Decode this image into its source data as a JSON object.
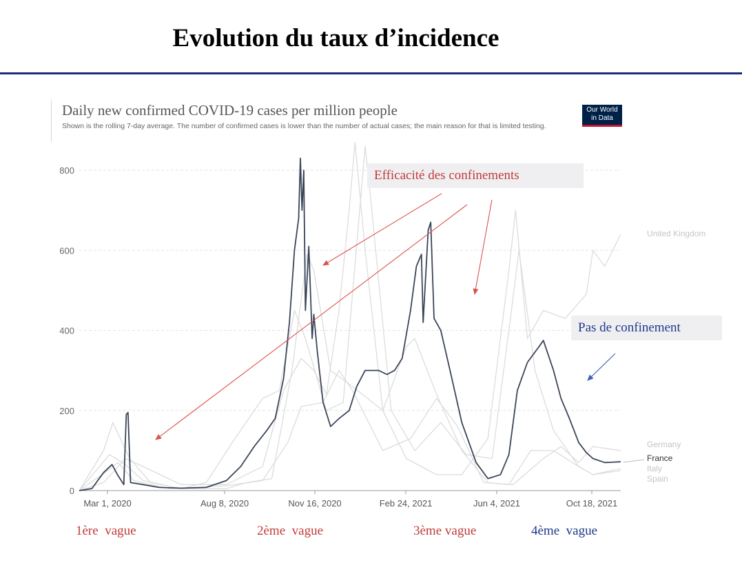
{
  "slide": {
    "title": "Evolution du taux d’incidence"
  },
  "logo": {
    "line1": "Our World",
    "line2": "in Data"
  },
  "annotations": {
    "red": "Efficacité des confinements",
    "blue": "Pas de confinement"
  },
  "waves": [
    "1ère  vague",
    "2ème  vague",
    "3ème vague",
    "4ème  vague"
  ],
  "colors": {
    "france": "#3a4458",
    "others": "#dcdcdc",
    "red": "#d9534f",
    "blue": "#3f5fb0"
  },
  "chart_data": {
    "type": "line",
    "title": "Daily new confirmed COVID-19 cases per million people",
    "subtitle": "Shown is the rolling 7-day average. The number of confirmed cases is lower than the number of actual cases; the main reason for that is limited testing.",
    "x_ticks": [
      "Mar 1, 2020",
      "Aug 8, 2020",
      "Nov 16, 2020",
      "Feb 24, 2021",
      "Jun 4, 2021",
      "Oct 18, 2021"
    ],
    "x_range": [
      "2020-02-15",
      "2021-11-20"
    ],
    "ylim": [
      0,
      850
    ],
    "y_ticks": [
      0,
      200,
      400,
      600,
      800
    ],
    "grid": true,
    "legend": "right, labels at line ends",
    "series": [
      {
        "name": "France",
        "highlight": true,
        "points": [
          [
            "2020-02-15",
            0
          ],
          [
            "2020-03-01",
            5
          ],
          [
            "2020-03-15",
            45
          ],
          [
            "2020-03-25",
            65
          ],
          [
            "2020-04-01",
            38
          ],
          [
            "2020-04-08",
            15
          ],
          [
            "2020-04-11",
            190
          ],
          [
            "2020-04-13",
            195
          ],
          [
            "2020-04-16",
            20
          ],
          [
            "2020-05-01",
            15
          ],
          [
            "2020-05-20",
            8
          ],
          [
            "2020-06-15",
            6
          ],
          [
            "2020-07-15",
            8
          ],
          [
            "2020-08-08",
            25
          ],
          [
            "2020-08-25",
            60
          ],
          [
            "2020-09-10",
            110
          ],
          [
            "2020-09-25",
            150
          ],
          [
            "2020-10-05",
            180
          ],
          [
            "2020-10-15",
            280
          ],
          [
            "2020-10-22",
            420
          ],
          [
            "2020-10-28",
            600
          ],
          [
            "2020-11-02",
            680
          ],
          [
            "2020-11-04",
            830
          ],
          [
            "2020-11-06",
            700
          ],
          [
            "2020-11-08",
            800
          ],
          [
            "2020-11-10",
            450
          ],
          [
            "2020-11-14",
            610
          ],
          [
            "2020-11-18",
            380
          ],
          [
            "2020-11-20",
            440
          ],
          [
            "2020-11-24",
            350
          ],
          [
            "2020-12-01",
            220
          ],
          [
            "2020-12-10",
            160
          ],
          [
            "2020-12-20",
            180
          ],
          [
            "2021-01-01",
            200
          ],
          [
            "2021-01-10",
            260
          ],
          [
            "2021-01-20",
            300
          ],
          [
            "2021-02-05",
            300
          ],
          [
            "2021-02-15",
            290
          ],
          [
            "2021-02-24",
            300
          ],
          [
            "2021-03-05",
            330
          ],
          [
            "2021-03-15",
            450
          ],
          [
            "2021-03-22",
            560
          ],
          [
            "2021-03-28",
            590
          ],
          [
            "2021-03-30",
            420
          ],
          [
            "2021-04-05",
            650
          ],
          [
            "2021-04-08",
            670
          ],
          [
            "2021-04-12",
            430
          ],
          [
            "2021-04-20",
            400
          ],
          [
            "2021-05-01",
            300
          ],
          [
            "2021-05-15",
            170
          ],
          [
            "2021-06-01",
            70
          ],
          [
            "2021-06-15",
            30
          ],
          [
            "2021-06-30",
            40
          ],
          [
            "2021-07-10",
            90
          ],
          [
            "2021-07-20",
            250
          ],
          [
            "2021-08-01",
            320
          ],
          [
            "2021-08-15",
            360
          ],
          [
            "2021-08-20",
            375
          ],
          [
            "2021-09-01",
            300
          ],
          [
            "2021-09-10",
            230
          ],
          [
            "2021-09-20",
            180
          ],
          [
            "2021-10-01",
            120
          ],
          [
            "2021-10-10",
            95
          ],
          [
            "2021-10-18",
            80
          ],
          [
            "2021-11-01",
            70
          ],
          [
            "2021-11-20",
            72
          ]
        ]
      },
      {
        "name": "United Kingdom",
        "highlight": false,
        "points": [
          [
            "2020-02-15",
            0
          ],
          [
            "2020-03-15",
            20
          ],
          [
            "2020-04-10",
            80
          ],
          [
            "2020-05-01",
            60
          ],
          [
            "2020-06-15",
            15
          ],
          [
            "2020-08-08",
            15
          ],
          [
            "2020-09-20",
            60
          ],
          [
            "2020-10-15",
            250
          ],
          [
            "2020-11-05",
            330
          ],
          [
            "2020-11-20",
            300
          ],
          [
            "2020-12-05",
            240
          ],
          [
            "2020-12-20",
            450
          ],
          [
            "2021-01-01",
            700
          ],
          [
            "2021-01-08",
            870
          ],
          [
            "2021-01-20",
            600
          ],
          [
            "2021-02-10",
            200
          ],
          [
            "2021-03-10",
            80
          ],
          [
            "2021-04-15",
            40
          ],
          [
            "2021-05-15",
            40
          ],
          [
            "2021-06-15",
            130
          ],
          [
            "2021-07-10",
            550
          ],
          [
            "2021-07-18",
            700
          ],
          [
            "2021-08-01",
            380
          ],
          [
            "2021-08-20",
            450
          ],
          [
            "2021-09-15",
            430
          ],
          [
            "2021-10-10",
            490
          ],
          [
            "2021-10-18",
            600
          ],
          [
            "2021-11-01",
            560
          ],
          [
            "2021-11-20",
            640
          ]
        ]
      },
      {
        "name": "Germany",
        "highlight": false,
        "points": [
          [
            "2020-02-15",
            0
          ],
          [
            "2020-03-20",
            50
          ],
          [
            "2020-04-01",
            70
          ],
          [
            "2020-04-20",
            25
          ],
          [
            "2020-06-01",
            5
          ],
          [
            "2020-08-08",
            12
          ],
          [
            "2020-09-20",
            25
          ],
          [
            "2020-10-20",
            120
          ],
          [
            "2020-11-05",
            210
          ],
          [
            "2020-12-01",
            220
          ],
          [
            "2020-12-20",
            300
          ],
          [
            "2021-01-05",
            250
          ],
          [
            "2021-02-10",
            100
          ],
          [
            "2021-03-15",
            130
          ],
          [
            "2021-04-15",
            230
          ],
          [
            "2021-05-10",
            160
          ],
          [
            "2021-06-10",
            20
          ],
          [
            "2021-07-15",
            15
          ],
          [
            "2021-08-20",
            80
          ],
          [
            "2021-09-10",
            110
          ],
          [
            "2021-10-01",
            70
          ],
          [
            "2021-10-18",
            110
          ],
          [
            "2021-11-20",
            100
          ]
        ]
      },
      {
        "name": "Italy",
        "highlight": false,
        "points": [
          [
            "2020-02-15",
            0
          ],
          [
            "2020-03-10",
            60
          ],
          [
            "2020-03-22",
            90
          ],
          [
            "2020-04-10",
            65
          ],
          [
            "2020-05-01",
            25
          ],
          [
            "2020-06-15",
            5
          ],
          [
            "2020-08-08",
            5
          ],
          [
            "2020-09-01",
            20
          ],
          [
            "2020-10-01",
            30
          ],
          [
            "2020-10-25",
            300
          ],
          [
            "2020-11-12",
            590
          ],
          [
            "2020-11-20",
            550
          ],
          [
            "2020-12-10",
            300
          ],
          [
            "2021-01-05",
            260
          ],
          [
            "2021-02-10",
            200
          ],
          [
            "2021-03-10",
            360
          ],
          [
            "2021-03-20",
            380
          ],
          [
            "2021-04-15",
            240
          ],
          [
            "2021-05-15",
            100
          ],
          [
            "2021-06-15",
            20
          ],
          [
            "2021-07-10",
            15
          ],
          [
            "2021-08-05",
            100
          ],
          [
            "2021-09-01",
            100
          ],
          [
            "2021-10-01",
            60
          ],
          [
            "2021-10-18",
            40
          ],
          [
            "2021-11-20",
            55
          ]
        ]
      },
      {
        "name": "Spain",
        "highlight": false,
        "points": [
          [
            "2020-02-15",
            0
          ],
          [
            "2020-03-15",
            100
          ],
          [
            "2020-03-26",
            170
          ],
          [
            "2020-04-15",
            80
          ],
          [
            "2020-05-10",
            20
          ],
          [
            "2020-06-15",
            5
          ],
          [
            "2020-07-15",
            20
          ],
          [
            "2020-08-15",
            120
          ],
          [
            "2020-09-20",
            230
          ],
          [
            "2020-10-10",
            250
          ],
          [
            "2020-10-28",
            450
          ],
          [
            "2020-11-10",
            380
          ],
          [
            "2020-12-05",
            200
          ],
          [
            "2020-12-25",
            220
          ],
          [
            "2021-01-20",
            860
          ],
          [
            "2021-01-28",
            700
          ],
          [
            "2021-02-20",
            200
          ],
          [
            "2021-03-20",
            100
          ],
          [
            "2021-04-20",
            170
          ],
          [
            "2021-05-20",
            90
          ],
          [
            "2021-06-20",
            80
          ],
          [
            "2021-07-10",
            400
          ],
          [
            "2021-07-22",
            600
          ],
          [
            "2021-08-10",
            300
          ],
          [
            "2021-09-01",
            150
          ],
          [
            "2021-10-01",
            60
          ],
          [
            "2021-10-18",
            40
          ],
          [
            "2021-11-20",
            50
          ]
        ]
      }
    ]
  }
}
